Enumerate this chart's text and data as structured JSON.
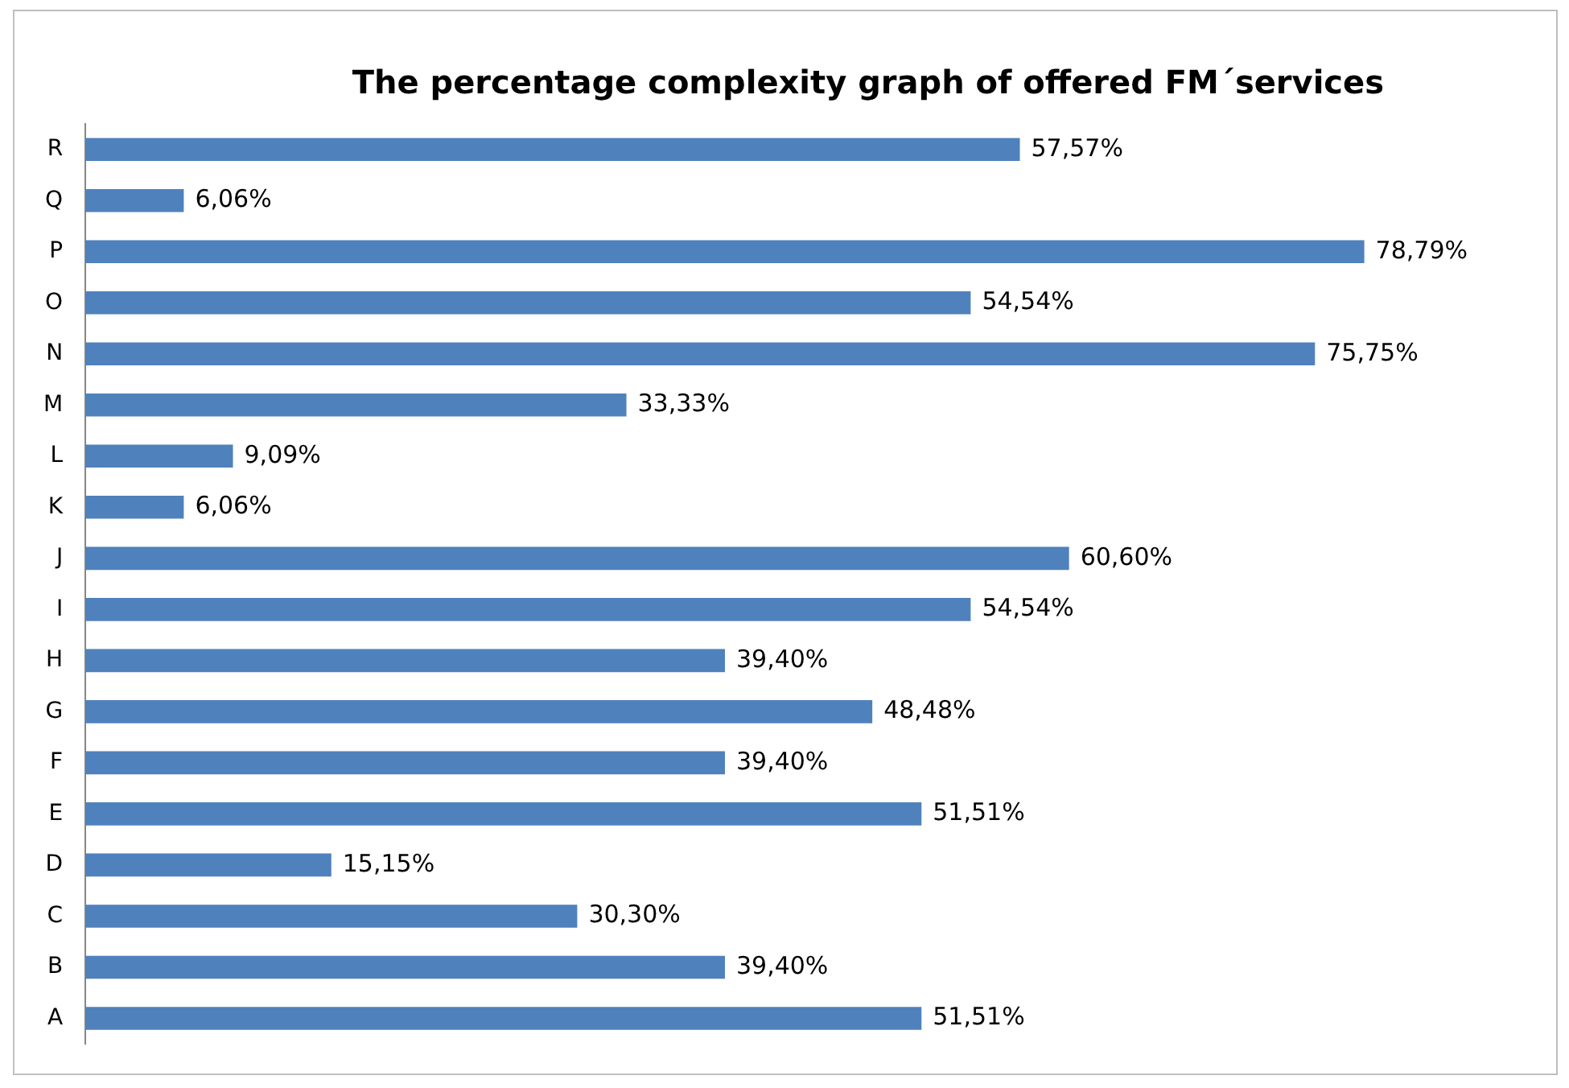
{
  "chart_data": {
    "type": "bar",
    "orientation": "horizontal",
    "title": "The percentage complexity graph of offered FM´services",
    "categories": [
      "R",
      "Q",
      "P",
      "O",
      "N",
      "M",
      "L",
      "K",
      "J",
      "I",
      "H",
      "G",
      "F",
      "E",
      "D",
      "C",
      "B",
      "A"
    ],
    "values": [
      57.57,
      6.06,
      78.79,
      54.54,
      75.75,
      33.33,
      9.09,
      6.06,
      60.6,
      54.54,
      39.4,
      48.48,
      39.4,
      51.51,
      15.15,
      30.3,
      39.4,
      51.51
    ],
    "value_labels": [
      "57,57%",
      "6,06%",
      "78,79%",
      "54,54%",
      "75,75%",
      "33,33%",
      "9,09%",
      "6,06%",
      "60,60%",
      "54,54%",
      "39,40%",
      "48,48%",
      "39,40%",
      "51,51%",
      "15,15%",
      "30,30%",
      "39,40%",
      "51,51%"
    ],
    "color": "#4f81bd",
    "tick_labels": "y"
  }
}
